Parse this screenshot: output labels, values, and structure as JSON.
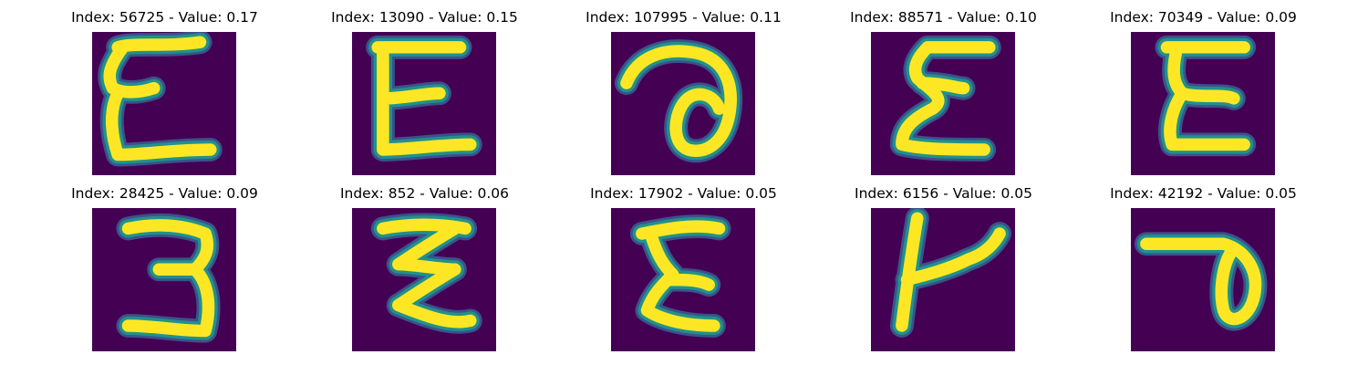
{
  "colors": {
    "background": "#440154",
    "stroke_core": "#fde725",
    "stroke_edge": "#21918c",
    "stroke_outer": "#3b528b"
  },
  "panels": [
    {
      "title": "Index: 56725 - Value: 0.17",
      "glyph": "epsilon-a"
    },
    {
      "title": "Index: 13090 - Value: 0.15",
      "glyph": "epsilon-b"
    },
    {
      "title": "Index: 107995 - Value: 0.11",
      "glyph": "loop-a"
    },
    {
      "title": "Index: 88571 - Value: 0.10",
      "glyph": "sigma-a"
    },
    {
      "title": "Index: 70349 - Value: 0.09",
      "glyph": "sigma-b"
    },
    {
      "title": "Index: 28425 - Value: 0.09",
      "glyph": "three"
    },
    {
      "title": "Index: 852 - Value: 0.06",
      "glyph": "zigzag"
    },
    {
      "title": "Index: 17902 - Value: 0.05",
      "glyph": "sigma-c"
    },
    {
      "title": "Index: 6156 - Value: 0.05",
      "glyph": "k-like"
    },
    {
      "title": "Index: 42192 - Value: 0.05",
      "glyph": "loop-b"
    }
  ]
}
